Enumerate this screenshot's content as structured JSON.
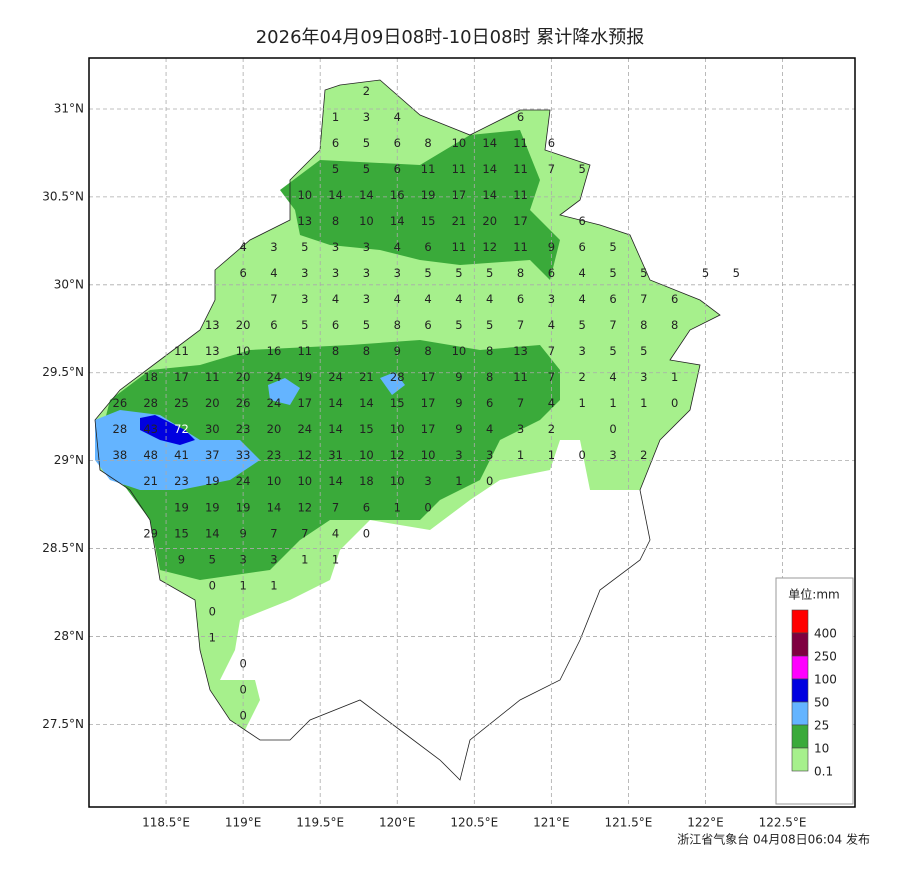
{
  "chart_data": {
    "type": "station-map",
    "title": "2026年04月09日08时-10日08时 累计降水预报",
    "footer": "浙江省气象台 04月08日06:04 发布",
    "xlim": [
      118.0,
      122.97
    ],
    "ylim": [
      27.03,
      31.29
    ],
    "xticks": [
      {
        "value": 118.5,
        "label": "118.5°E"
      },
      {
        "value": 119,
        "label": "119°E"
      },
      {
        "value": 119.5,
        "label": "119.5°E"
      },
      {
        "value": 120,
        "label": "120°E"
      },
      {
        "value": 120.5,
        "label": "120.5°E"
      },
      {
        "value": 121,
        "label": "121°E"
      },
      {
        "value": 121.5,
        "label": "121.5°E"
      },
      {
        "value": 122,
        "label": "122°E"
      },
      {
        "value": 122.5,
        "label": "122.5°E"
      }
    ],
    "yticks": [
      {
        "value": 27.5,
        "label": "27.5°N"
      },
      {
        "value": 28,
        "label": "28°N"
      },
      {
        "value": 28.5,
        "label": "28.5°N"
      },
      {
        "value": 29,
        "label": "29°N"
      },
      {
        "value": 29.5,
        "label": "29.5°N"
      },
      {
        "value": 30,
        "label": "30°N"
      },
      {
        "value": 30.5,
        "label": "30.5°N"
      },
      {
        "value": 31,
        "label": "31°N"
      }
    ],
    "grid": true,
    "legend_title": "单位:mm",
    "legend": [
      {
        "value": 400,
        "color": "#ff0000"
      },
      {
        "value": 250,
        "color": "#7f0040"
      },
      {
        "value": 100,
        "color": "#ff00ff"
      },
      {
        "value": 50,
        "color": "#0000e0"
      },
      {
        "value": 25,
        "color": "#64b4ff"
      },
      {
        "value": 10,
        "color": "#3aaa3a"
      },
      {
        "value": 0.1,
        "color": "#a6f08c"
      }
    ],
    "stations": [
      [
        null,
        null,
        null,
        null,
        null,
        null,
        null,
        null,
        2,
        null,
        null,
        null,
        null,
        null,
        null,
        null,
        null,
        null,
        null,
        null,
        null
      ],
      [
        null,
        null,
        null,
        null,
        null,
        null,
        null,
        1,
        3,
        4,
        null,
        null,
        null,
        6,
        null,
        null,
        null,
        null,
        null,
        null,
        null
      ],
      [
        null,
        null,
        null,
        null,
        null,
        null,
        null,
        6,
        5,
        6,
        8,
        10,
        14,
        11,
        6,
        null,
        null,
        null,
        null,
        null,
        null
      ],
      [
        null,
        null,
        null,
        null,
        null,
        null,
        null,
        5,
        5,
        6,
        11,
        11,
        14,
        11,
        7,
        5,
        null,
        null,
        null,
        null,
        null
      ],
      [
        null,
        null,
        null,
        null,
        null,
        null,
        10,
        14,
        14,
        16,
        19,
        17,
        14,
        11,
        null,
        null,
        null,
        null,
        null,
        null,
        null
      ],
      [
        null,
        null,
        null,
        null,
        null,
        null,
        13,
        8,
        10,
        14,
        15,
        21,
        20,
        17,
        null,
        6,
        null,
        null,
        null,
        null,
        null
      ],
      [
        null,
        null,
        null,
        null,
        4,
        3,
        5,
        3,
        3,
        4,
        6,
        11,
        12,
        11,
        9,
        6,
        5,
        null,
        null,
        null,
        null
      ],
      [
        null,
        null,
        null,
        null,
        6,
        4,
        3,
        3,
        3,
        3,
        5,
        5,
        5,
        8,
        6,
        4,
        5,
        5,
        null,
        5,
        5
      ],
      [
        null,
        null,
        null,
        null,
        null,
        7,
        3,
        4,
        3,
        4,
        4,
        4,
        4,
        6,
        3,
        4,
        6,
        7,
        6,
        null,
        null
      ],
      [
        null,
        null,
        null,
        13,
        20,
        6,
        5,
        6,
        5,
        8,
        6,
        5,
        5,
        7,
        4,
        5,
        7,
        8,
        8,
        null,
        null
      ],
      [
        null,
        null,
        11,
        13,
        10,
        16,
        11,
        8,
        8,
        9,
        8,
        10,
        8,
        13,
        7,
        3,
        5,
        5,
        null,
        null,
        null
      ],
      [
        null,
        18,
        17,
        11,
        20,
        24,
        19,
        24,
        21,
        28,
        17,
        9,
        8,
        11,
        7,
        2,
        4,
        3,
        1,
        null,
        null
      ],
      [
        26,
        28,
        25,
        20,
        26,
        24,
        17,
        14,
        14,
        15,
        17,
        9,
        6,
        7,
        4,
        1,
        1,
        1,
        0,
        null,
        null
      ],
      [
        28,
        43,
        72,
        30,
        23,
        20,
        24,
        14,
        15,
        10,
        17,
        9,
        4,
        3,
        2,
        null,
        0,
        null,
        null,
        null,
        null
      ],
      [
        38,
        48,
        41,
        37,
        33,
        23,
        12,
        31,
        10,
        12,
        10,
        3,
        3,
        1,
        1,
        0,
        3,
        2,
        null,
        null,
        null
      ],
      [
        null,
        21,
        23,
        19,
        24,
        10,
        10,
        14,
        18,
        10,
        3,
        1,
        0,
        null,
        null,
        null,
        null,
        null,
        null,
        null,
        null
      ],
      [
        null,
        null,
        19,
        19,
        19,
        14,
        12,
        7,
        6,
        1,
        0,
        null,
        null,
        null,
        null,
        null,
        null,
        null,
        null,
        null,
        null
      ],
      [
        null,
        29,
        15,
        14,
        9,
        7,
        7,
        4,
        0,
        null,
        null,
        null,
        null,
        null,
        null,
        null,
        null,
        null,
        null,
        null,
        null
      ],
      [
        null,
        null,
        9,
        5,
        3,
        3,
        1,
        1,
        null,
        null,
        null,
        null,
        null,
        null,
        null,
        null,
        null,
        null,
        null,
        null,
        null
      ],
      [
        null,
        null,
        null,
        0,
        1,
        1,
        null,
        null,
        null,
        null,
        null,
        null,
        null,
        null,
        null,
        null,
        null,
        null,
        null,
        null,
        null
      ],
      [
        null,
        null,
        null,
        0,
        null,
        null,
        null,
        null,
        null,
        null,
        null,
        null,
        null,
        null,
        null,
        null,
        null,
        null,
        null,
        null,
        null
      ],
      [
        null,
        null,
        null,
        1,
        null,
        null,
        null,
        null,
        null,
        null,
        null,
        null,
        null,
        null,
        null,
        null,
        null,
        null,
        null,
        null,
        null
      ],
      [
        null,
        null,
        null,
        null,
        0,
        null,
        null,
        null,
        null,
        null,
        null,
        null,
        null,
        null,
        null,
        null,
        null,
        null,
        null,
        null,
        null
      ],
      [
        null,
        null,
        null,
        null,
        0,
        null,
        null,
        null,
        null,
        null,
        null,
        null,
        null,
        null,
        null,
        null,
        null,
        null,
        null,
        null,
        null
      ],
      [
        null,
        null,
        null,
        null,
        0,
        null,
        null,
        null,
        null,
        null,
        null,
        null,
        null,
        null,
        null,
        null,
        null,
        null,
        null,
        null,
        null
      ]
    ]
  }
}
